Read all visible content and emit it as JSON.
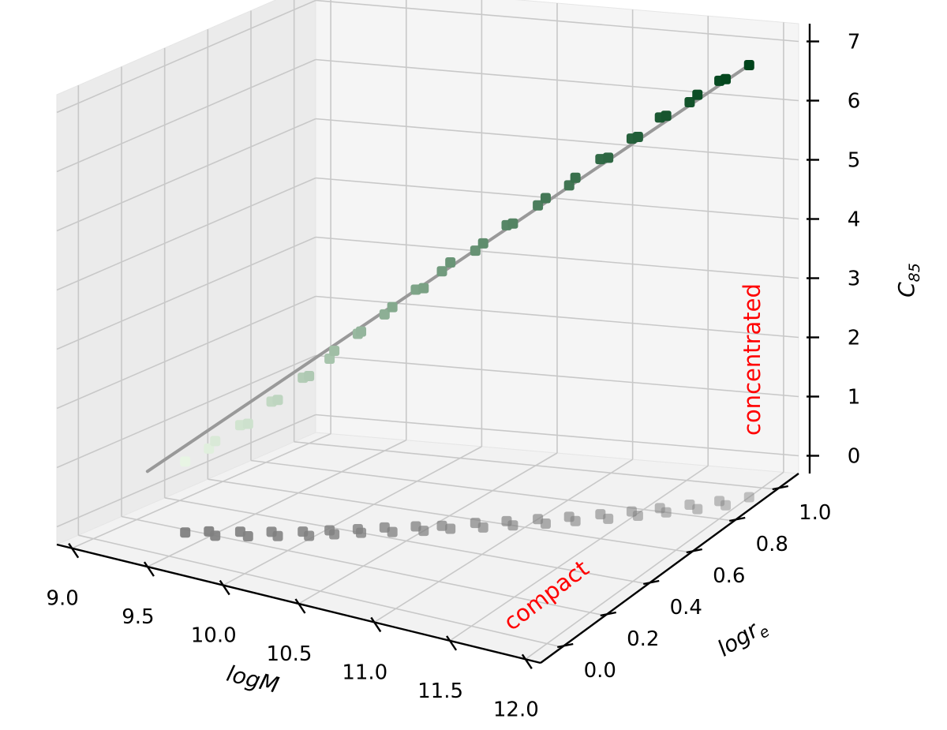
{
  "chart_data": {
    "type": "scatter3d",
    "axes": {
      "x": {
        "label_main": "logM",
        "label_sub": "",
        "range": [
          8.9,
          12.1
        ],
        "ticks": [
          "9.0",
          "9.5",
          "10.0",
          "10.5",
          "11.0",
          "11.5",
          "12.0"
        ]
      },
      "y": {
        "label_main": "logr",
        "label_sub": "e",
        "range": [
          -0.1,
          1.1
        ],
        "ticks": [
          "0.0",
          "0.2",
          "0.4",
          "0.6",
          "0.8",
          "1.0"
        ]
      },
      "z": {
        "label_main": "C",
        "label_sub": "85",
        "range": [
          -0.3,
          7.3
        ],
        "ticks": [
          "0",
          "1",
          "2",
          "3",
          "4",
          "5",
          "6",
          "7"
        ]
      }
    },
    "grid": true,
    "annotations": [
      {
        "text": "concentrated",
        "color": "#ff0000"
      },
      {
        "text": "compact",
        "color": "#ff0000"
      }
    ],
    "colors": {
      "projection": "#808080",
      "fit_line": "#999999",
      "green_light": "#e8f5e4",
      "green_dark": "#00441b"
    },
    "series": [
      {
        "kind": "points",
        "x": [
          9.35,
          9.45,
          9.52,
          9.6,
          9.68,
          9.75,
          9.82,
          9.9,
          9.97,
          10.02,
          10.08,
          10.15,
          10.2,
          10.27,
          10.35,
          10.42,
          10.5,
          10.55,
          10.62,
          10.7,
          10.78,
          10.85,
          10.92,
          11.0,
          11.08,
          11.15,
          11.22,
          11.3,
          11.38,
          11.45,
          11.52,
          11.58,
          11.65,
          11.72,
          11.8,
          11.86,
          11.93,
          12.0
        ],
        "y": [
          0.18,
          0.22,
          0.2,
          0.26,
          0.24,
          0.3,
          0.28,
          0.34,
          0.32,
          0.38,
          0.36,
          0.42,
          0.4,
          0.46,
          0.44,
          0.5,
          0.48,
          0.53,
          0.52,
          0.58,
          0.56,
          0.62,
          0.6,
          0.66,
          0.64,
          0.7,
          0.68,
          0.74,
          0.72,
          0.78,
          0.76,
          0.82,
          0.8,
          0.86,
          0.84,
          0.9,
          0.88,
          0.94
        ],
        "z": [
          0.9,
          1.1,
          1.3,
          1.5,
          1.6,
          1.9,
          2.0,
          2.3,
          2.4,
          2.6,
          2.8,
          3.0,
          3.1,
          3.3,
          3.5,
          3.7,
          3.8,
          4.0,
          4.2,
          4.3,
          4.5,
          4.7,
          4.8,
          5.0,
          5.2,
          5.3,
          5.5,
          5.7,
          5.8,
          6.0,
          6.1,
          6.3,
          6.4,
          6.5,
          6.7,
          6.8,
          6.9,
          7.0
        ]
      },
      {
        "kind": "line",
        "x": [
          9.1,
          12.0
        ],
        "y": [
          0.18,
          0.94
        ],
        "z": [
          0.6,
          7.0
        ]
      }
    ]
  }
}
